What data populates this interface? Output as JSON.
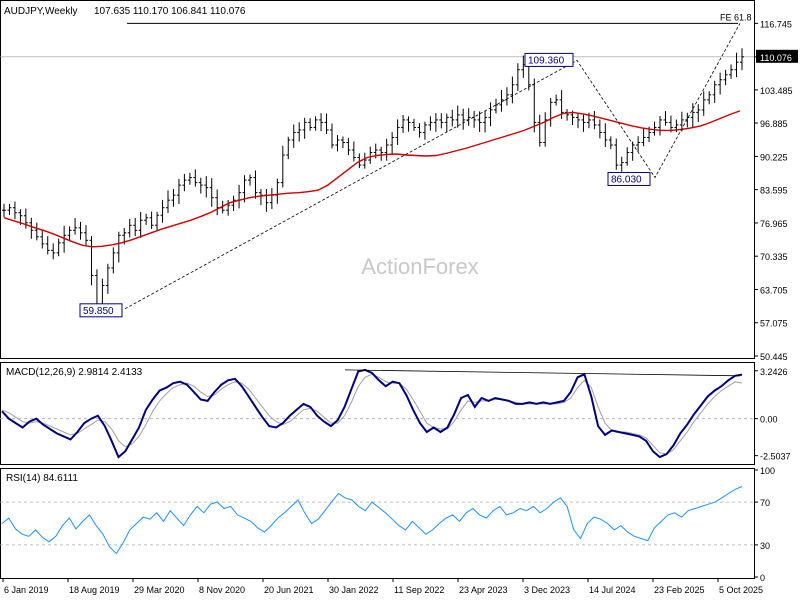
{
  "header": {
    "symbol": "AUDJPY,Weekly",
    "ohlc": "107.635 110.170 106.841 110.076"
  },
  "watermark": "ActionForex",
  "colors": {
    "price_bar": "#000000",
    "moving_average": "#cc0000",
    "macd_line": "#000080",
    "signal_line": "#a0a0a0",
    "rsi_line": "#1e90ff",
    "annotation_box_border": "#000080",
    "current_price_box": "#000000"
  },
  "chart_data": [
    {
      "type": "ohlc",
      "panel": "price",
      "title": "AUDJPY,Weekly",
      "x_ticks": [
        "6 Jan 2019",
        "18 Aug 2019",
        "29 Mar 2020",
        "8 Nov 2020",
        "20 Jun 2021",
        "30 Jan 2022",
        "11 Sep 2022",
        "23 Apr 2023",
        "3 Dec 2023",
        "14 Jul 2024",
        "23 Feb 2025",
        "5 Oct 2025"
      ],
      "y_ticks": [
        "116.745",
        "110.076",
        "103.485",
        "96.885",
        "90.225",
        "83.595",
        "76.965",
        "70.335",
        "63.705",
        "57.075",
        "50.445"
      ],
      "ylim": [
        50.445,
        121.0
      ],
      "current_price": "110.076",
      "fe_level": {
        "label": "FE 61.8",
        "value": 116.745
      },
      "annotations": [
        {
          "label": "59.850",
          "value": 59.85
        },
        {
          "label": "109.360",
          "value": 109.36
        },
        {
          "label": "86.030",
          "value": 86.03
        }
      ],
      "series_close": [
        79.5,
        80.0,
        79.0,
        78.4,
        77.0,
        75.5,
        74.2,
        72.8,
        71.5,
        71.0,
        73.0,
        74.5,
        75.5,
        76.0,
        75.0,
        73.5,
        66.5,
        60.8,
        64.5,
        68.0,
        71.0,
        74.5,
        75.0,
        76.5,
        75.5,
        77.5,
        78.0,
        76.5,
        78.5,
        80.0,
        81.5,
        82.5,
        84.5,
        85.5,
        86.0,
        85.0,
        84.5,
        84.0,
        82.0,
        80.0,
        79.5,
        80.5,
        81.5,
        83.0,
        85.5,
        86.0,
        83.0,
        82.5,
        81.0,
        82.5,
        85.0,
        90.5,
        93.5,
        95.0,
        95.5,
        97.0,
        96.0,
        97.5,
        97.0,
        95.5,
        92.5,
        93.5,
        93.0,
        91.5,
        90.0,
        88.5,
        89.5,
        91.0,
        91.5,
        91.0,
        92.5,
        94.0,
        96.0,
        97.5,
        97.0,
        96.0,
        95.0,
        96.5,
        97.0,
        97.5,
        97.0,
        98.0,
        97.5,
        98.5,
        97.5,
        98.0,
        97.5,
        97.0,
        98.0,
        99.5,
        100.5,
        101.5,
        102.5,
        104.5,
        107.5,
        108.5,
        104.5,
        97.0,
        93.0,
        97.5,
        101.0,
        101.5,
        99.0,
        98.5,
        98.0,
        97.5,
        97.0,
        97.5,
        96.5,
        95.0,
        93.5,
        92.5,
        88.5,
        89.0,
        91.0,
        92.5,
        93.0,
        94.0,
        95.0,
        96.0,
        97.5,
        97.0,
        96.0,
        96.5,
        97.5,
        98.0,
        99.0,
        99.5,
        101.5,
        102.5,
        104.5,
        105.5,
        106.5,
        107.5,
        109.0,
        110.076
      ],
      "series_ma": [
        78.0,
        77.4,
        76.8,
        76.1,
        75.5,
        74.8,
        74.0,
        73.2,
        72.5,
        72.2,
        72.3,
        72.6,
        73.0,
        73.6,
        74.3,
        75.0,
        75.7,
        76.3,
        76.9,
        77.5,
        78.2,
        79.0,
        80.0,
        81.0,
        81.5,
        82.0,
        82.3,
        82.5,
        82.7,
        82.9,
        83.0,
        83.2,
        83.5,
        84.5,
        86.0,
        87.5,
        89.0,
        90.0,
        90.4,
        90.6,
        90.7,
        90.5,
        90.4,
        90.3,
        90.4,
        90.8,
        91.3,
        91.8,
        92.4,
        93.0,
        93.6,
        94.2,
        94.8,
        95.4,
        96.2,
        97.0,
        98.0,
        98.8,
        99.0,
        98.7,
        98.3,
        97.8,
        97.3,
        96.8,
        96.3,
        95.9,
        95.6,
        95.4,
        95.4,
        95.6,
        95.9,
        96.3,
        97.0,
        97.8,
        98.6,
        99.3
      ],
      "series_ma_start_index": 0,
      "series_ma_note": ""
    },
    {
      "type": "line",
      "panel": "macd",
      "title": "MACD(12,26,9) 2.9814 2.4133",
      "y_ticks": [
        "3.2426",
        "0.00",
        "-2.5037"
      ],
      "ylim": [
        -3.0,
        3.7
      ],
      "series": [
        {
          "name": "MACD",
          "values": [
            0.5,
            0.0,
            -0.3,
            -0.6,
            -0.2,
            0.0,
            -0.4,
            -0.7,
            -1.0,
            -1.2,
            -1.4,
            -0.9,
            -0.3,
            0.0,
            0.2,
            -0.5,
            -1.5,
            -2.6,
            -2.2,
            -1.4,
            -0.6,
            0.6,
            1.3,
            1.9,
            2.1,
            2.4,
            2.5,
            2.3,
            1.8,
            1.3,
            1.2,
            1.8,
            2.3,
            2.6,
            2.7,
            2.2,
            1.5,
            0.8,
            0.1,
            -0.5,
            -0.6,
            -0.3,
            0.2,
            0.6,
            1.0,
            0.8,
            0.2,
            -0.2,
            -0.5,
            -0.1,
            0.8,
            2.0,
            3.2,
            3.3,
            3.1,
            2.6,
            2.2,
            2.5,
            2.4,
            1.6,
            0.6,
            -0.3,
            -0.9,
            -0.6,
            -0.9,
            -0.6,
            0.3,
            1.4,
            1.6,
            0.8,
            1.4,
            1.2,
            1.4,
            1.3,
            1.2,
            1.0,
            1.0,
            1.1,
            1.0,
            1.1,
            1.0,
            1.1,
            1.2,
            1.8,
            2.8,
            3.0,
            1.5,
            -0.5,
            -1.1,
            -0.8,
            -0.9,
            -1.0,
            -1.1,
            -1.2,
            -1.5,
            -2.2,
            -2.6,
            -2.4,
            -1.8,
            -1.0,
            -0.4,
            0.3,
            0.9,
            1.5,
            1.9,
            2.2,
            2.6,
            2.9,
            2.98
          ]
        },
        {
          "name": "Signal",
          "values": [
            0.6,
            0.4,
            0.1,
            -0.2,
            -0.3,
            -0.2,
            -0.3,
            -0.5,
            -0.7,
            -0.9,
            -1.1,
            -1.0,
            -0.7,
            -0.4,
            -0.1,
            -0.2,
            -0.7,
            -1.5,
            -1.9,
            -1.7,
            -1.2,
            -0.4,
            0.5,
            1.2,
            1.7,
            2.1,
            2.3,
            2.4,
            2.2,
            1.8,
            1.5,
            1.6,
            2.0,
            2.3,
            2.5,
            2.4,
            2.0,
            1.4,
            0.8,
            0.2,
            -0.2,
            -0.4,
            -0.2,
            0.2,
            0.6,
            0.7,
            0.5,
            0.1,
            -0.3,
            -0.3,
            0.2,
            1.1,
            2.2,
            2.8,
            3.0,
            2.8,
            2.5,
            2.4,
            2.4,
            2.0,
            1.3,
            0.5,
            -0.3,
            -0.6,
            -0.7,
            -0.7,
            -0.2,
            0.6,
            1.2,
            1.1,
            1.2,
            1.2,
            1.3,
            1.3,
            1.2,
            1.1,
            1.0,
            1.0,
            1.0,
            1.0,
            1.0,
            1.0,
            1.1,
            1.4,
            2.1,
            2.6,
            2.1,
            0.8,
            -0.3,
            -0.8,
            -0.9,
            -0.9,
            -1.0,
            -1.1,
            -1.3,
            -1.8,
            -2.3,
            -2.4,
            -2.1,
            -1.5,
            -0.9,
            -0.2,
            0.4,
            1.0,
            1.5,
            1.9,
            2.2,
            2.5,
            2.41
          ]
        }
      ]
    },
    {
      "type": "line",
      "panel": "rsi",
      "title": "RSI(14) 84.6111",
      "y_ticks": [
        "100",
        "70",
        "30",
        "0"
      ],
      "ylim": [
        0,
        100
      ],
      "levels": [
        70,
        30
      ],
      "series": [
        {
          "name": "RSI",
          "values": [
            50,
            55,
            45,
            40,
            38,
            44,
            37,
            33,
            38,
            48,
            55,
            45,
            52,
            58,
            48,
            40,
            28,
            22,
            32,
            44,
            50,
            56,
            54,
            60,
            52,
            62,
            55,
            48,
            58,
            66,
            60,
            68,
            70,
            64,
            66,
            58,
            55,
            52,
            46,
            42,
            48,
            55,
            60,
            66,
            72,
            60,
            50,
            54,
            62,
            70,
            78,
            74,
            72,
            66,
            62,
            70,
            65,
            60,
            54,
            48,
            44,
            52,
            46,
            40,
            44,
            50,
            55,
            58,
            52,
            60,
            64,
            58,
            55,
            62,
            66,
            58,
            60,
            64,
            62,
            66,
            60,
            64,
            70,
            74,
            66,
            44,
            36,
            50,
            56,
            54,
            50,
            44,
            48,
            42,
            38,
            36,
            34,
            46,
            52,
            58,
            60,
            56,
            62,
            64,
            66,
            68,
            70,
            74,
            78,
            82,
            84.6
          ]
        }
      ]
    }
  ]
}
